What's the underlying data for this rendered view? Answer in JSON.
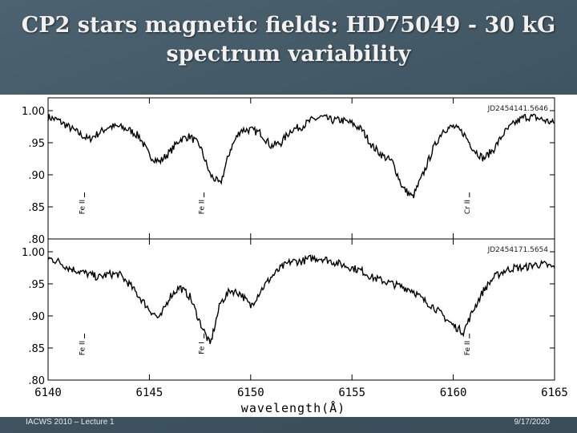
{
  "slide": {
    "title_line1": "CP2 stars magnetic fields: HD75049 - 30 kG",
    "title_line2": "spectrum variability"
  },
  "footer": {
    "left": "IACWS 2010 – Lecture 1",
    "right": "9/17/2020"
  },
  "chart_data": {
    "type": "line",
    "xlabel": "wavelength(Å)",
    "xlim": [
      6140,
      6165
    ],
    "x_ticks": [
      6140,
      6145,
      6150,
      6155,
      6160,
      6165
    ],
    "panels": [
      {
        "label": "JD2454141.5646",
        "ylim": [
          0.8,
          1.02
        ],
        "y_tick_labels": [
          "1.00",
          ".95",
          ".90",
          ".85",
          ".80"
        ],
        "y_tick_values": [
          1.0,
          0.95,
          0.9,
          0.85,
          0.8
        ],
        "line_ids": [
          {
            "x": 6141.8,
            "label": "Fe II"
          },
          {
            "x": 6147.7,
            "label": "Fe II"
          },
          {
            "x": 6160.8,
            "label": "Cr II"
          }
        ],
        "spectrum": {
          "x": [
            6140.0,
            6140.5,
            6141.0,
            6141.5,
            6142.0,
            6142.5,
            6143.0,
            6143.5,
            6144.0,
            6144.5,
            6145.0,
            6145.5,
            6146.0,
            6146.5,
            6147.0,
            6147.5,
            6148.0,
            6148.5,
            6149.0,
            6149.5,
            6150.0,
            6150.5,
            6151.0,
            6151.5,
            6152.0,
            6152.5,
            6153.0,
            6153.5,
            6154.0,
            6154.5,
            6155.0,
            6155.5,
            6156.0,
            6156.5,
            6157.0,
            6157.5,
            6158.0,
            6158.5,
            6159.0,
            6159.5,
            6160.0,
            6160.5,
            6161.0,
            6161.5,
            6162.0,
            6162.5,
            6163.0,
            6163.5,
            6164.0,
            6164.5,
            6165.0
          ],
          "y": [
            0.99,
            0.985,
            0.975,
            0.965,
            0.955,
            0.965,
            0.975,
            0.975,
            0.97,
            0.96,
            0.93,
            0.92,
            0.935,
            0.955,
            0.96,
            0.945,
            0.9,
            0.885,
            0.94,
            0.97,
            0.97,
            0.965,
            0.945,
            0.95,
            0.97,
            0.975,
            0.985,
            0.99,
            0.985,
            0.985,
            0.98,
            0.97,
            0.945,
            0.93,
            0.92,
            0.88,
            0.865,
            0.9,
            0.94,
            0.97,
            0.975,
            0.965,
            0.94,
            0.925,
            0.94,
            0.965,
            0.98,
            0.99,
            0.99,
            0.985,
            0.98
          ]
        }
      },
      {
        "label": "JD2454171.5654",
        "ylim": [
          0.8,
          1.02
        ],
        "y_tick_labels": [
          "1.00",
          ".95",
          ".90",
          ".85",
          ".80"
        ],
        "y_tick_values": [
          1.0,
          0.95,
          0.9,
          0.85,
          0.8
        ],
        "line_ids": [
          {
            "x": 6141.8,
            "label": "Fe II"
          },
          {
            "x": 6147.7,
            "label": "Fe I"
          },
          {
            "x": 6160.8,
            "label": "Fe II"
          }
        ],
        "spectrum": {
          "x": [
            6140.0,
            6140.5,
            6141.0,
            6141.5,
            6142.0,
            6142.5,
            6143.0,
            6143.5,
            6144.0,
            6144.5,
            6145.0,
            6145.5,
            6146.0,
            6146.5,
            6147.0,
            6147.5,
            6148.0,
            6148.5,
            6149.0,
            6149.5,
            6150.0,
            6150.5,
            6151.0,
            6151.5,
            6152.0,
            6152.5,
            6153.0,
            6153.5,
            6154.0,
            6154.5,
            6155.0,
            6155.5,
            6156.0,
            6156.5,
            6157.0,
            6157.5,
            6158.0,
            6158.5,
            6159.0,
            6159.5,
            6160.0,
            6160.5,
            6161.0,
            6161.5,
            6162.0,
            6162.5,
            6163.0,
            6163.5,
            6164.0,
            6164.5,
            6165.0
          ],
          "y": [
            0.99,
            0.985,
            0.975,
            0.97,
            0.965,
            0.96,
            0.965,
            0.965,
            0.95,
            0.93,
            0.91,
            0.895,
            0.93,
            0.945,
            0.93,
            0.89,
            0.855,
            0.92,
            0.94,
            0.935,
            0.915,
            0.94,
            0.96,
            0.975,
            0.985,
            0.985,
            0.99,
            0.99,
            0.985,
            0.98,
            0.975,
            0.97,
            0.96,
            0.955,
            0.95,
            0.945,
            0.94,
            0.925,
            0.915,
            0.9,
            0.885,
            0.875,
            0.91,
            0.94,
            0.96,
            0.97,
            0.975,
            0.975,
            0.98,
            0.98,
            0.975
          ]
        }
      }
    ]
  }
}
